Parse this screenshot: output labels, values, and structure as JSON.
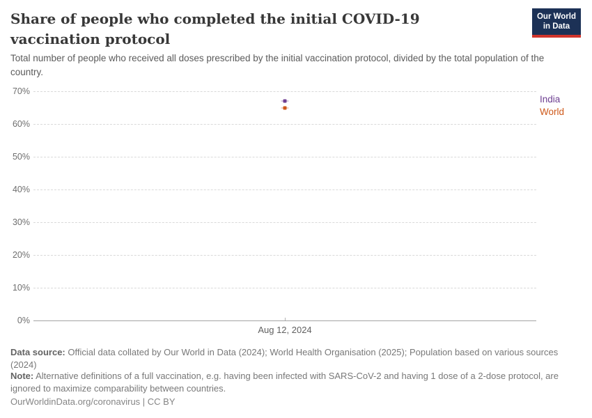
{
  "header": {
    "title": "Share of people who completed the initial COVID-19 vaccination protocol",
    "subtitle": "Total number of people who received all doses prescribed by the initial vaccination protocol, divided by the total population of the country."
  },
  "logo": {
    "line1": "Our World",
    "line2": "in Data",
    "bg_color": "#1c3156",
    "accent_color": "#d0342c"
  },
  "chart_data": {
    "type": "scatter",
    "title": "Share of people who completed the initial COVID-19 vaccination protocol",
    "x": [
      "Aug 12, 2024"
    ],
    "x_tick_label": "Aug 12, 2024",
    "series": [
      {
        "name": "India",
        "color": "#6d3e91",
        "values": [
          67
        ]
      },
      {
        "name": "World",
        "color": "#ce5819",
        "values": [
          65
        ]
      }
    ],
    "ylim": [
      0,
      70
    ],
    "y_ticks": [
      {
        "value": 0,
        "label": "0%"
      },
      {
        "value": 10,
        "label": "10%"
      },
      {
        "value": 20,
        "label": "20%"
      },
      {
        "value": 30,
        "label": "30%"
      },
      {
        "value": 40,
        "label": "40%"
      },
      {
        "value": 50,
        "label": "50%"
      },
      {
        "value": 60,
        "label": "60%"
      },
      {
        "value": 70,
        "label": "70%"
      }
    ],
    "grid": "horizontal-dashed",
    "legend_position": "right"
  },
  "footer": {
    "data_source_label": "Data source:",
    "data_source_text": "Official data collated by Our World in Data (2024); World Health Organisation (2025); Population based on various sources (2024)",
    "note_label": "Note:",
    "note_text": "Alternative definitions of a full vaccination, e.g. having been infected with SARS-CoV-2 and having 1 dose of a 2-dose protocol, are ignored to maximize comparability between countries.",
    "attribution": "OurWorldinData.org/coronavirus | CC BY"
  }
}
